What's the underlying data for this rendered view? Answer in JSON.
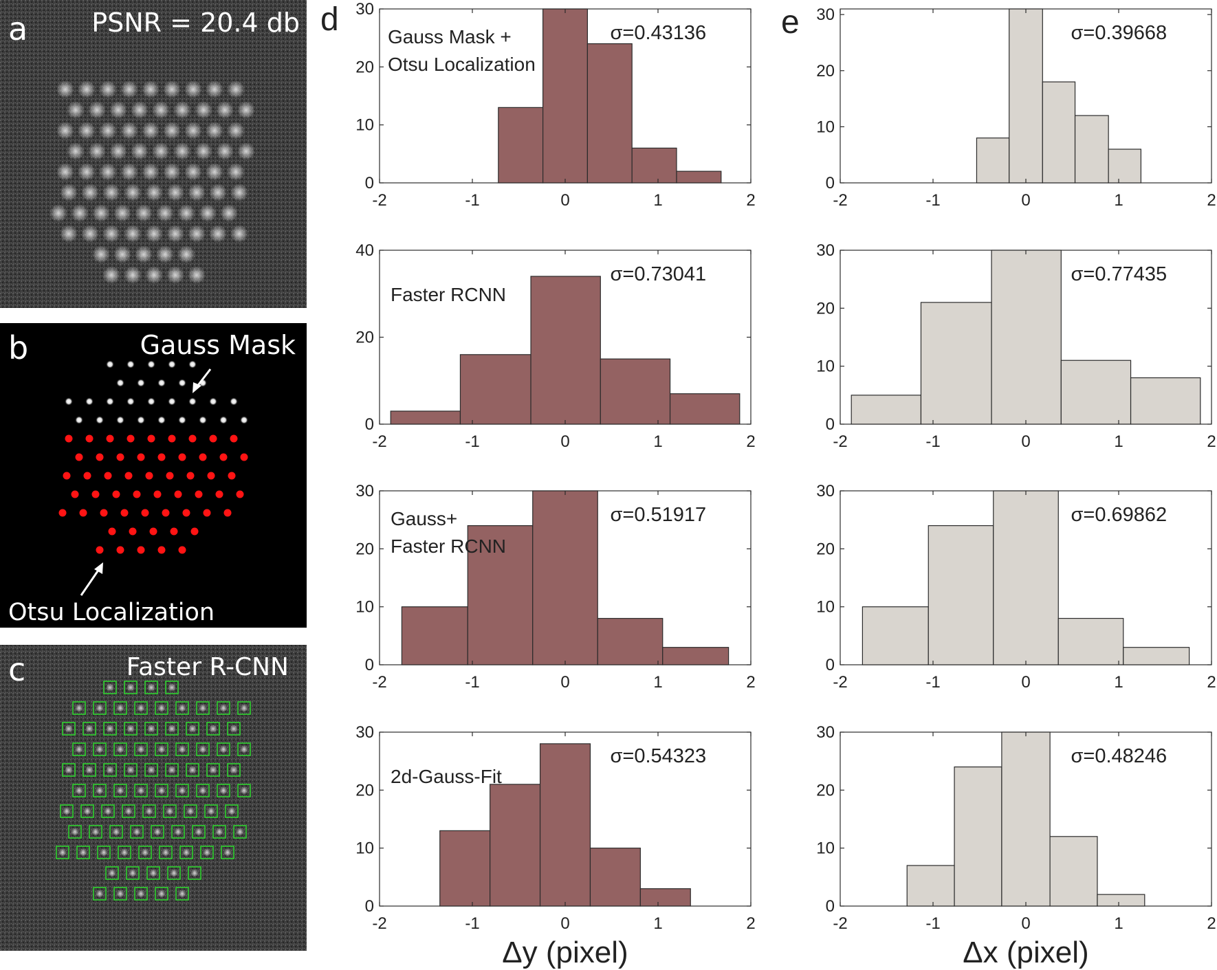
{
  "figure": {
    "panel_labels": {
      "a": "a",
      "b": "b",
      "c": "c",
      "d": "d",
      "e": "e"
    },
    "panel_a": {
      "text": "PSNR = 20.4 db"
    },
    "panel_b": {
      "title": "Gauss Mask",
      "annotation": "Otsu Localization"
    },
    "panel_c": {
      "title": "Faster R-CNN"
    },
    "xlabel_d": "Δy (pixel)",
    "xlabel_e": "Δx (pixel)",
    "colors": {
      "d_bar": "#946262",
      "e_bar": "#d9d5cf",
      "edge": "#2b2b2b",
      "marker": "#ff1414",
      "box": "#2ed12e"
    }
  },
  "chart_data": [
    {
      "id": "d1",
      "type": "bar",
      "method": "Gauss Mask + Otsu Localization",
      "label_lines": [
        "Gauss Mask +",
        "Otsu Localization"
      ],
      "sigma_label": "σ=0.43136",
      "bin_edges": [
        -0.72,
        -0.24,
        0.24,
        0.72,
        1.2,
        1.68
      ],
      "values": [
        13,
        30,
        24,
        6,
        2
      ],
      "xlim": [
        -2,
        2
      ],
      "ylim": [
        0,
        30
      ],
      "xticks": [
        -2,
        -1,
        0,
        1,
        2
      ],
      "yticks": [
        0,
        10,
        20,
        30
      ]
    },
    {
      "id": "d2",
      "type": "bar",
      "method": "Faster RCNN",
      "label_lines": [
        "Faster RCNN"
      ],
      "sigma_label": "σ=0.73041",
      "bin_edges": [
        -1.88,
        -1.13,
        -0.37,
        0.38,
        1.13,
        1.88
      ],
      "values": [
        3,
        16,
        34,
        15,
        7
      ],
      "xlim": [
        -2,
        2
      ],
      "ylim": [
        0,
        40
      ],
      "xticks": [
        -2,
        -1,
        0,
        1,
        2
      ],
      "yticks": [
        0,
        20,
        40
      ]
    },
    {
      "id": "d3",
      "type": "bar",
      "method": "Gauss+ Faster RCNN",
      "label_lines": [
        "Gauss+",
        "Faster RCNN"
      ],
      "sigma_label": "σ=0.51917",
      "bin_edges": [
        -1.76,
        -1.05,
        -0.35,
        0.35,
        1.05,
        1.76
      ],
      "values": [
        10,
        24,
        30,
        8,
        3
      ],
      "xlim": [
        -2,
        2
      ],
      "ylim": [
        0,
        30
      ],
      "xticks": [
        -2,
        -1,
        0,
        1,
        2
      ],
      "yticks": [
        0,
        10,
        20,
        30
      ]
    },
    {
      "id": "d4",
      "type": "bar",
      "method": "2d-Gauss-Fit",
      "label_lines": [
        "2d-Gauss-Fit"
      ],
      "sigma_label": "σ=0.54323",
      "bin_edges": [
        -1.35,
        -0.81,
        -0.27,
        0.27,
        0.81,
        1.35
      ],
      "values": [
        13,
        21,
        28,
        10,
        3
      ],
      "xlim": [
        -2,
        2
      ],
      "ylim": [
        0,
        30
      ],
      "xticks": [
        -2,
        -1,
        0,
        1,
        2
      ],
      "yticks": [
        0,
        10,
        20,
        30
      ]
    },
    {
      "id": "e1",
      "type": "bar",
      "method": "Gauss Mask + Otsu Localization",
      "sigma_label": "σ=0.39668",
      "bin_edges": [
        -0.53,
        -0.18,
        0.18,
        0.53,
        0.89,
        1.24
      ],
      "values": [
        8,
        31,
        18,
        12,
        6
      ],
      "xlim": [
        -2,
        2
      ],
      "ylim": [
        0,
        31
      ],
      "xticks": [
        -2,
        -1,
        0,
        1,
        2
      ],
      "yticks": [
        0,
        10,
        20,
        30
      ]
    },
    {
      "id": "e2",
      "type": "bar",
      "method": "Faster RCNN",
      "sigma_label": "σ=0.77435",
      "bin_edges": [
        -1.88,
        -1.13,
        -0.37,
        0.38,
        1.13,
        1.88
      ],
      "values": [
        5,
        21,
        30,
        11,
        8
      ],
      "xlim": [
        -2,
        2
      ],
      "ylim": [
        0,
        30
      ],
      "xticks": [
        -2,
        -1,
        0,
        1,
        2
      ],
      "yticks": [
        0,
        10,
        20,
        30
      ]
    },
    {
      "id": "e3",
      "type": "bar",
      "method": "Gauss+ Faster RCNN",
      "sigma_label": "σ=0.69862",
      "bin_edges": [
        -1.76,
        -1.05,
        -0.35,
        0.35,
        1.05,
        1.76
      ],
      "values": [
        10,
        24,
        30,
        8,
        3
      ],
      "xlim": [
        -2,
        2
      ],
      "ylim": [
        0,
        30
      ],
      "xticks": [
        -2,
        -1,
        0,
        1,
        2
      ],
      "yticks": [
        0,
        10,
        20,
        30
      ]
    },
    {
      "id": "e4",
      "type": "bar",
      "method": "2d-Gauss-Fit",
      "sigma_label": "σ=0.48246",
      "bin_edges": [
        -1.28,
        -0.77,
        -0.26,
        0.26,
        0.77,
        1.28
      ],
      "values": [
        7,
        24,
        30,
        12,
        2
      ],
      "xlim": [
        -2,
        2
      ],
      "ylim": [
        0,
        30
      ],
      "xticks": [
        -2,
        -1,
        0,
        1,
        2
      ],
      "yticks": [
        0,
        10,
        20,
        30
      ]
    }
  ]
}
